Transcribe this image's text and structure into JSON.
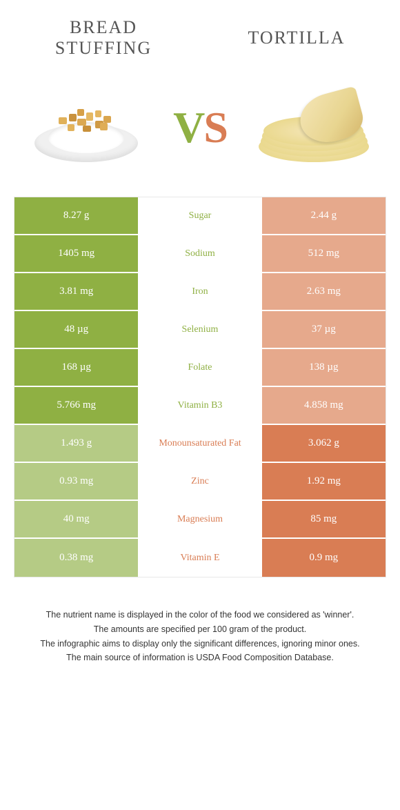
{
  "left_food": {
    "title": "BREAD STUFFING"
  },
  "right_food": {
    "title": "TORTILLA"
  },
  "vs": {
    "v": "V",
    "s": "S"
  },
  "colors": {
    "green": "#8fb043",
    "green_light": "#b5cb85",
    "orange": "#d97d54",
    "orange_light": "#e6a98c"
  },
  "table": {
    "rows": [
      {
        "left": "8.27 g",
        "nutrient": "Sugar",
        "right": "2.44 g",
        "winner": "left"
      },
      {
        "left": "1405 mg",
        "nutrient": "Sodium",
        "right": "512 mg",
        "winner": "left"
      },
      {
        "left": "3.81 mg",
        "nutrient": "Iron",
        "right": "2.63 mg",
        "winner": "left"
      },
      {
        "left": "48 µg",
        "nutrient": "Selenium",
        "right": "37 µg",
        "winner": "left"
      },
      {
        "left": "168 µg",
        "nutrient": "Folate",
        "right": "138 µg",
        "winner": "left"
      },
      {
        "left": "5.766 mg",
        "nutrient": "Vitamin B3",
        "right": "4.858 mg",
        "winner": "left"
      },
      {
        "left": "1.493 g",
        "nutrient": "Monounsaturated Fat",
        "right": "3.062 g",
        "winner": "right"
      },
      {
        "left": "0.93 mg",
        "nutrient": "Zinc",
        "right": "1.92 mg",
        "winner": "right"
      },
      {
        "left": "40 mg",
        "nutrient": "Magnesium",
        "right": "85 mg",
        "winner": "right"
      },
      {
        "left": "0.38 mg",
        "nutrient": "Vitamin E",
        "right": "0.9 mg",
        "winner": "right"
      }
    ]
  },
  "footer": {
    "line1": "The nutrient name is displayed in the color of the food we considered as 'winner'.",
    "line2": "The amounts are specified per 100 gram of the product.",
    "line3": "The infographic aims to display only the significant differences, ignoring minor ones.",
    "line4": "The main source of information is USDA Food Composition Database."
  }
}
